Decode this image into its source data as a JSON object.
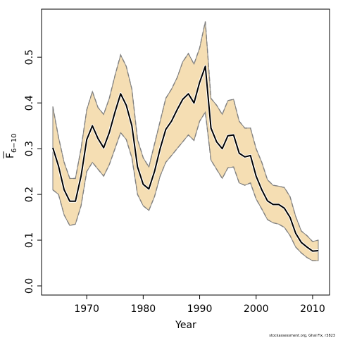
{
  "chart_data": {
    "type": "line",
    "title": "",
    "xlabel": "Year",
    "ylabel": "F",
    "ylabel_sub": "6−10",
    "xlim": [
      1962,
      2013
    ],
    "ylim": [
      -0.02,
      0.605
    ],
    "xticks": [
      1970,
      1980,
      1990,
      2000,
      2010
    ],
    "yticks": [
      0.0,
      0.1,
      0.2,
      0.3,
      0.4,
      0.5
    ],
    "ytick_labels": [
      "0.0",
      "0.1",
      "0.2",
      "0.3",
      "0.4",
      "0.5"
    ],
    "grid": false,
    "colors": {
      "band": "#f5deb3",
      "line": "#000000",
      "outline": "#808080",
      "bound": "#808080"
    },
    "x": [
      1964,
      1965,
      1966,
      1967,
      1968,
      1969,
      1970,
      1971,
      1972,
      1973,
      1974,
      1975,
      1976,
      1977,
      1978,
      1979,
      1980,
      1981,
      1982,
      1983,
      1984,
      1985,
      1986,
      1987,
      1988,
      1989,
      1990,
      1991,
      1992,
      1993,
      1994,
      1995,
      1996,
      1997,
      1998,
      1999,
      2000,
      2001,
      2002,
      2003,
      2004,
      2005,
      2006,
      2007,
      2008,
      2009,
      2010,
      2011
    ],
    "series": [
      {
        "role": "estimate",
        "values": [
          0.302,
          0.262,
          0.21,
          0.185,
          0.185,
          0.24,
          0.32,
          0.35,
          0.322,
          0.302,
          0.335,
          0.38,
          0.42,
          0.395,
          0.35,
          0.26,
          0.222,
          0.212,
          0.25,
          0.3,
          0.342,
          0.36,
          0.385,
          0.408,
          0.42,
          0.4,
          0.445,
          0.48,
          0.345,
          0.315,
          0.3,
          0.328,
          0.33,
          0.29,
          0.282,
          0.285,
          0.24,
          0.21,
          0.186,
          0.178,
          0.178,
          0.17,
          0.15,
          0.115,
          0.095,
          0.085,
          0.076,
          0.077
        ]
      },
      {
        "role": "upper",
        "values": [
          0.392,
          0.325,
          0.27,
          0.235,
          0.235,
          0.3,
          0.385,
          0.425,
          0.39,
          0.375,
          0.41,
          0.46,
          0.505,
          0.48,
          0.43,
          0.32,
          0.28,
          0.26,
          0.31,
          0.36,
          0.41,
          0.43,
          0.455,
          0.49,
          0.508,
          0.485,
          0.52,
          0.578,
          0.41,
          0.395,
          0.375,
          0.405,
          0.408,
          0.36,
          0.345,
          0.345,
          0.3,
          0.27,
          0.232,
          0.22,
          0.218,
          0.215,
          0.195,
          0.152,
          0.12,
          0.11,
          0.097,
          0.1
        ]
      },
      {
        "role": "lower",
        "values": [
          0.21,
          0.2,
          0.155,
          0.132,
          0.135,
          0.175,
          0.25,
          0.27,
          0.255,
          0.24,
          0.265,
          0.3,
          0.335,
          0.32,
          0.28,
          0.2,
          0.175,
          0.165,
          0.195,
          0.24,
          0.27,
          0.285,
          0.3,
          0.315,
          0.33,
          0.318,
          0.36,
          0.38,
          0.275,
          0.255,
          0.235,
          0.258,
          0.26,
          0.225,
          0.22,
          0.225,
          0.19,
          0.168,
          0.145,
          0.138,
          0.135,
          0.128,
          0.11,
          0.085,
          0.072,
          0.062,
          0.055,
          0.055
        ]
      }
    ]
  },
  "footer": {
    "credit": "stockassessment.org, Ghal Fix, r3823"
  }
}
